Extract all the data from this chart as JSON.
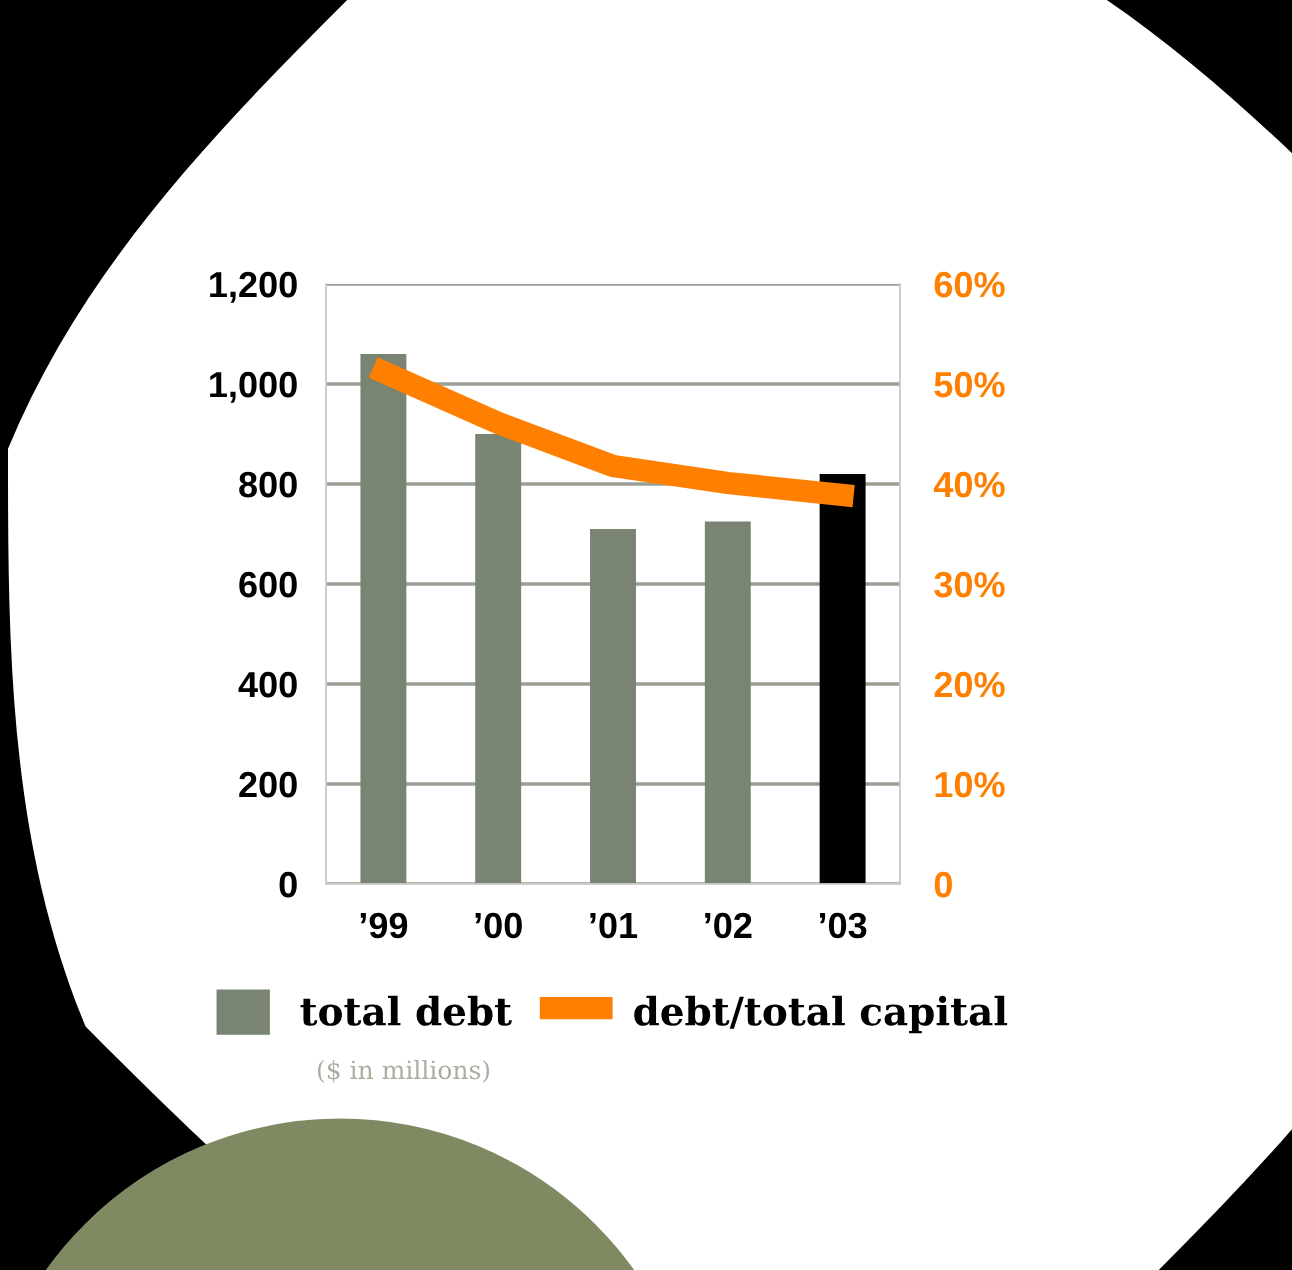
{
  "chart_data": {
    "type": "bar",
    "categories": [
      "’99",
      "’00",
      "’01",
      "’02",
      "’03"
    ],
    "series": [
      {
        "name": "total debt",
        "color": "#7a8472",
        "colors": [
          "#7a8472",
          "#7a8472",
          "#7a8472",
          "#7a8472",
          "#000000"
        ],
        "values": [
          1060,
          900,
          710,
          725,
          820
        ]
      },
      {
        "name": "debt/total capital",
        "type": "line",
        "axis": "y2",
        "color": "#ff7f00",
        "values": [
          51.2,
          46.1,
          41.8,
          40.1,
          38.9
        ]
      }
    ],
    "ylim": [
      0,
      1200
    ],
    "yticks": [
      0,
      200,
      400,
      600,
      800,
      {
        "value": 1000,
        "label": "1,000"
      },
      {
        "value": 1200,
        "label": "1,200"
      }
    ],
    "y2lim": [
      0,
      60
    ],
    "y2ticks": [
      0,
      {
        "value": 10,
        "label": "10%"
      },
      {
        "value": 20,
        "label": "20%"
      },
      {
        "value": 30,
        "label": "30%"
      },
      {
        "value": 40,
        "label": "40%"
      },
      {
        "value": 50,
        "label": "50%"
      },
      {
        "value": 60,
        "label": "60%"
      }
    ],
    "grid": "y",
    "legend": "bottom",
    "line_style": "solid",
    "annotations": [
      "($ in millions)"
    ]
  }
}
